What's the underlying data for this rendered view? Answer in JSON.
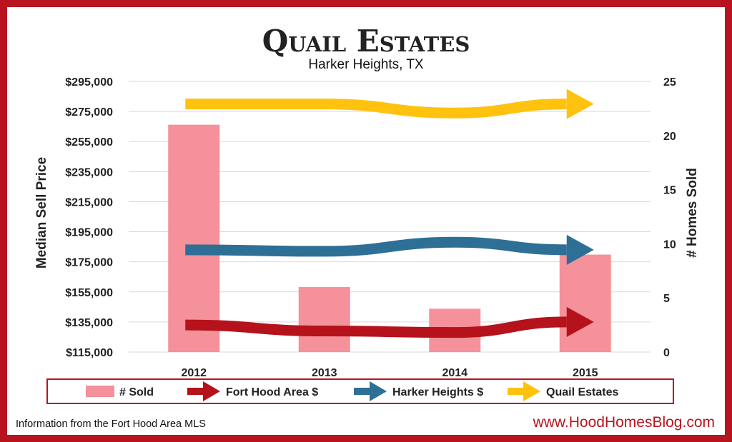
{
  "chart_data": {
    "type": "bar",
    "title": "Quail Estates",
    "subtitle": "Harker Heights, TX",
    "categories": [
      "2012",
      "2013",
      "2014",
      "2015"
    ],
    "ylabel_left": "Median Sell Price",
    "ylabel_right": "# Homes Sold",
    "ylim_left": [
      115000,
      295000
    ],
    "ylim_right": [
      0,
      25
    ],
    "yticks_left": [
      "$295,000",
      "$275,000",
      "$255,000",
      "$235,000",
      "$215,000",
      "$195,000",
      "$175,000",
      "$155,000",
      "$135,000",
      "$115,000"
    ],
    "yticks_right": [
      "25",
      "20",
      "15",
      "10",
      "5",
      "0"
    ],
    "grid": true,
    "legend_position": "bottom",
    "bars": {
      "name": "# Sold",
      "axis": "right",
      "values": [
        21,
        6,
        4,
        9
      ],
      "color": "#f4919a"
    },
    "series": [
      {
        "name": "Fort Hood Area $",
        "axis": "left",
        "type": "arrow",
        "values": [
          133000,
          129000,
          128000,
          135000
        ],
        "color": "#b5121b"
      },
      {
        "name": "Harker Heights $",
        "axis": "left",
        "type": "arrow",
        "values": [
          183000,
          182000,
          188000,
          183000
        ],
        "color": "#2e6f95"
      },
      {
        "name": "Quail Estates",
        "axis": "left",
        "type": "arrow",
        "values": [
          280000,
          280000,
          274000,
          280000
        ],
        "color": "#ffc20e"
      }
    ]
  },
  "footer": {
    "source": "Information from the Fort Hood Area MLS",
    "website": "www.HoodHomesBlog.com"
  },
  "colors": {
    "frame": "#b8141f",
    "panel": "#ffffff",
    "grid": "#d9d9d9"
  }
}
